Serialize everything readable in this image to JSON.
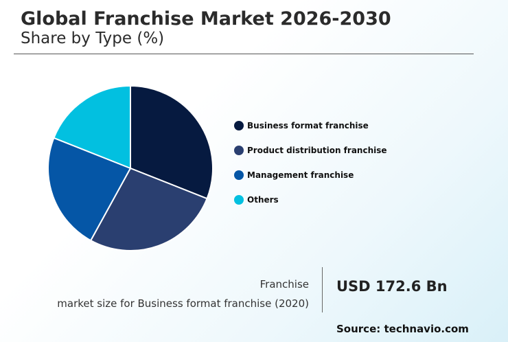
{
  "header": {
    "title": "Global Franchise Market 2026-2030",
    "subtitle": "Share by Type (%)"
  },
  "chart_data": {
    "type": "pie",
    "title": "Global Franchise Market 2026-2030",
    "subtitle": "Share by Type (%)",
    "legend_position": "right",
    "slices": [
      {
        "label": "Business format franchise",
        "value": 31,
        "color": "#061a40"
      },
      {
        "label": "Product distribution franchise",
        "value": 27,
        "color": "#2a3f70"
      },
      {
        "label": "Management franchise",
        "value": 23,
        "color": "#0556a6"
      },
      {
        "label": "Others",
        "value": 19,
        "color": "#02c0e0"
      }
    ]
  },
  "stat": {
    "label_line1": "Franchise",
    "label_line2": "market size for Business format franchise (2020)",
    "value": "USD 172.6 Bn"
  },
  "source": "Source: technavio.com"
}
